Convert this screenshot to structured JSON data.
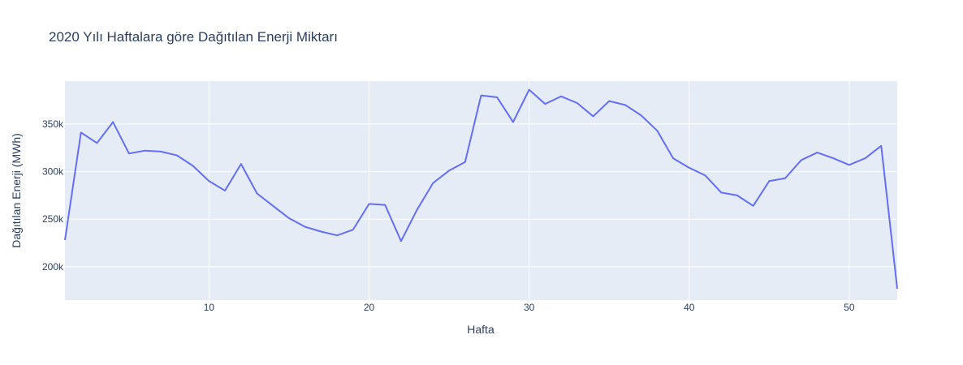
{
  "chart_data": {
    "type": "line",
    "title": "2020 Yılı Haftalara göre Dağıtılan Enerji Miktarı",
    "xlabel": "Hafta",
    "ylabel": "Dağıtılan Enerji (MWh)",
    "xlim": [
      1,
      53
    ],
    "ylim": [
      165000,
      395000
    ],
    "x_ticks": [
      10,
      20,
      30,
      40,
      50
    ],
    "y_ticks": [
      200000,
      250000,
      300000,
      350000
    ],
    "y_tick_labels": [
      "200k",
      "250k",
      "300k",
      "350k"
    ],
    "grid": true,
    "line_color": "#636efa",
    "plot_bg": "#e5ecf6",
    "series": [
      {
        "x": [
          1,
          2,
          3,
          4,
          5,
          6,
          7,
          8,
          9,
          10,
          11,
          12,
          13,
          14,
          15,
          16,
          17,
          18,
          19,
          20,
          21,
          22,
          23,
          24,
          25,
          26,
          27,
          28,
          29,
          30,
          31,
          32,
          33,
          34,
          35,
          36,
          37,
          38,
          39,
          40,
          41,
          42,
          43,
          44,
          45,
          46,
          47,
          48,
          49,
          50,
          51,
          52,
          53
        ],
        "values": [
          228000,
          341000,
          330000,
          352000,
          319000,
          322000,
          321000,
          317000,
          306000,
          290000,
          280000,
          308000,
          277000,
          264000,
          251000,
          242000,
          237000,
          233000,
          239000,
          266000,
          265000,
          227000,
          260000,
          288000,
          301000,
          310000,
          380000,
          378000,
          352000,
          386000,
          371000,
          379000,
          372000,
          358000,
          374000,
          370000,
          359000,
          343000,
          314000,
          304000,
          296000,
          278000,
          275000,
          264000,
          290000,
          293000,
          312000,
          320000,
          314000,
          307000,
          314000,
          327000,
          177000
        ]
      }
    ]
  }
}
